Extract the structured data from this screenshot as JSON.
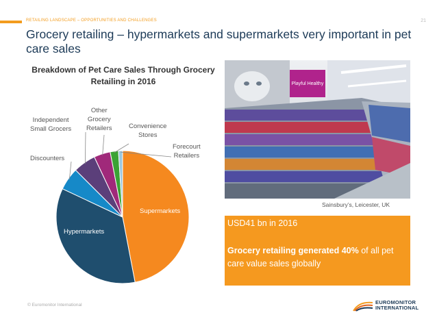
{
  "header": {
    "section": "RETAILING LANDSCAPE – OPPORTUNITIES AND CHALLENGES",
    "page_number": "21",
    "title": "Grocery retailing – hypermarkets and supermarkets very important in pet care sales"
  },
  "chart_data": {
    "type": "pie",
    "title": "Breakdown of Pet Care Sales Through Grocery Retailing in 2016",
    "categories": [
      "Supermarkets",
      "Hypermarkets",
      "Discounters",
      "Independent Small Grocers",
      "Other Grocery Retailers",
      "Convenience Stores",
      "Forecourt Retailers"
    ],
    "values": [
      47,
      35,
      5.5,
      5.5,
      4,
      2,
      1
    ],
    "label_lines": [
      [
        "Supermarkets"
      ],
      [
        "Hypermarkets"
      ],
      [
        "Discounters"
      ],
      [
        "Independent",
        "Small Grocers"
      ],
      [
        "Other",
        "Grocery",
        "Retailers"
      ],
      [
        "Convenience",
        "Stores"
      ],
      [
        "Forecourt",
        "Retailers"
      ]
    ],
    "colors": [
      "#f5891f",
      "#1f4e6e",
      "#1689c8",
      "#5b3f7a",
      "#a0297a",
      "#3aa335",
      "#9cc8df"
    ]
  },
  "photo": {
    "caption": "Sainsbury’s, Leicester, UK",
    "shelf_sign": "Playful Healthy"
  },
  "callout": {
    "value": "USD41 bn in 2016",
    "text_bold": "Grocery retailing generated 40%",
    "text_rest": " of all pet care value sales globally"
  },
  "footer": {
    "copyright": "© Euromonitor International"
  },
  "logo": {
    "line1": "EUROMONITOR",
    "line2": "INTERNATIONAL"
  }
}
